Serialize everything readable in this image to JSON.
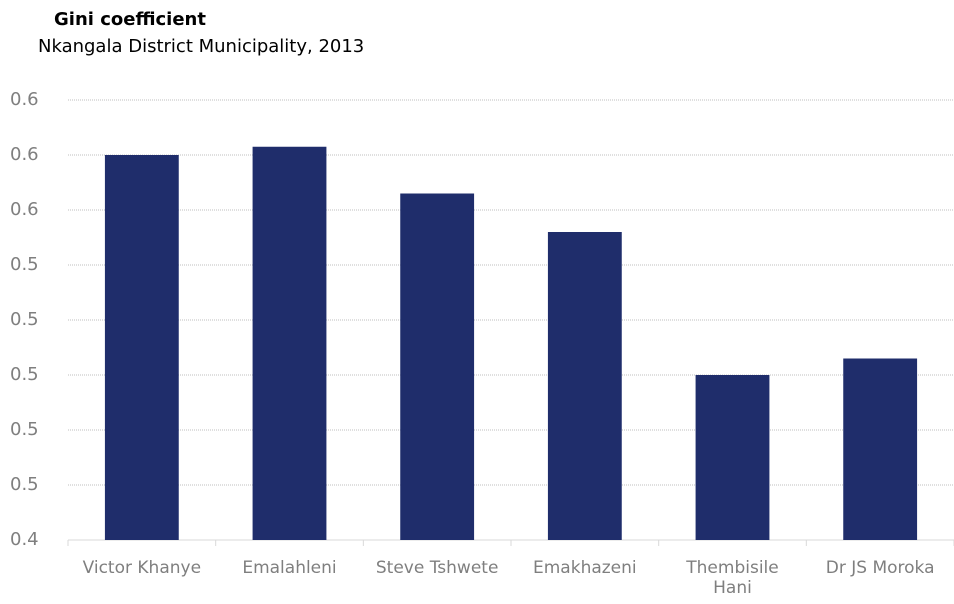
{
  "chart_data": {
    "type": "bar",
    "title": "Gini coefficient",
    "subtitle": "Nkangala District Municipality, 2013",
    "categories": [
      "Victor Khanye",
      "Emalahleni",
      "Steve Tshwete",
      "Emakhazeni",
      "Thembisile Hani",
      "Dr JS Moroka"
    ],
    "values": [
      0.58,
      0.583,
      0.566,
      0.552,
      0.5,
      0.506
    ],
    "color": "#1f2d6b",
    "ylim": [
      0.44,
      0.6
    ],
    "yticks": [
      {
        "value": 0.44,
        "label": "0.4"
      },
      {
        "value": 0.46,
        "label": "0.5"
      },
      {
        "value": 0.48,
        "label": "0.5"
      },
      {
        "value": 0.5,
        "label": "0.5"
      },
      {
        "value": 0.52,
        "label": "0.5"
      },
      {
        "value": 0.54,
        "label": "0.5"
      },
      {
        "value": 0.56,
        "label": "0.6"
      },
      {
        "value": 0.58,
        "label": "0.6"
      },
      {
        "value": 0.6,
        "label": "0.6"
      }
    ],
    "grid": true
  }
}
